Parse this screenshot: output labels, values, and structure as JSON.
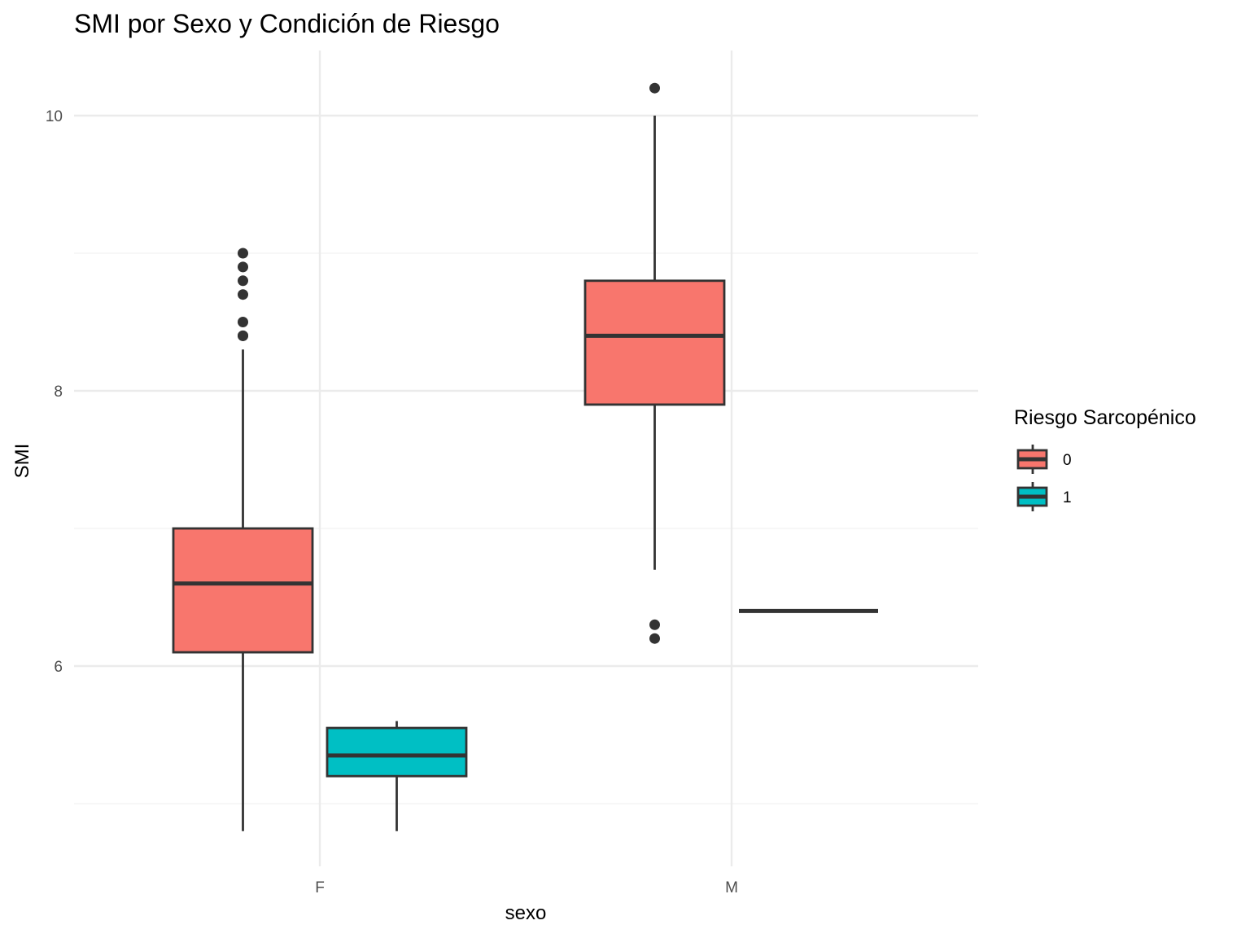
{
  "chart_data": {
    "type": "boxplot",
    "title": "SMI por Sexo y Condición de Riesgo",
    "xlabel": "sexo",
    "ylabel": "SMI",
    "categories": [
      "F",
      "M"
    ],
    "y_ticks": [
      6,
      8,
      10
    ],
    "y_tick_labels": [
      "6",
      "8",
      "10"
    ],
    "ylim": [
      4.5,
      10.47
    ],
    "grid": true,
    "legend": {
      "title": "Riesgo Sarcopénico",
      "placement": "right",
      "entries": [
        {
          "label": "0",
          "color": "#F8766D"
        },
        {
          "label": "1",
          "color": "#00BFC4"
        }
      ]
    },
    "series": [
      {
        "name": "0",
        "color": "#F8766D",
        "boxes": [
          {
            "category": "F",
            "lower_whisker": 4.8,
            "q1": 6.1,
            "median": 6.6,
            "q3": 7.0,
            "upper_whisker": 8.3,
            "outliers": [
              8.4,
              8.4,
              8.5,
              8.7,
              8.8,
              8.9,
              9.0
            ]
          },
          {
            "category": "M",
            "lower_whisker": 6.7,
            "q1": 7.9,
            "median": 8.4,
            "q3": 8.8,
            "upper_whisker": 10.0,
            "outliers": [
              6.2,
              6.3,
              10.2
            ]
          }
        ]
      },
      {
        "name": "1",
        "color": "#00BFC4",
        "boxes": [
          {
            "category": "F",
            "lower_whisker": 4.8,
            "q1": 5.2,
            "median": 5.35,
            "q3": 5.55,
            "upper_whisker": 5.6,
            "outliers": []
          },
          {
            "category": "M",
            "lower_whisker": 6.4,
            "q1": 6.4,
            "median": 6.4,
            "q3": 6.4,
            "upper_whisker": 6.4,
            "outliers": []
          }
        ]
      }
    ]
  }
}
